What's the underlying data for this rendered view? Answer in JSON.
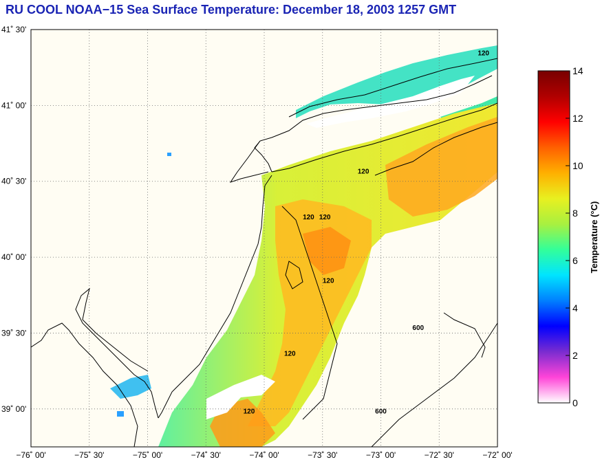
{
  "title": "RU COOL  NOAA−15  Sea Surface Temperature:  December 18, 2003 1257 GMT",
  "map": {
    "lat_labels": [
      "41˚ 30'",
      "41˚ 00'",
      "40˚ 30'",
      "40˚ 00'",
      "39˚ 30'",
      "39˚ 00'"
    ],
    "lon_labels": [
      "−76˚ 00'",
      "−75˚ 30'",
      "−75˚ 00'",
      "−74˚ 30'",
      "−74˚ 00'",
      "−73˚ 30'",
      "−73˚ 00'",
      "−72˚ 30'",
      "−72˚ 00'"
    ],
    "lat_range": [
      38.75,
      41.5
    ],
    "lon_range": [
      -76.0,
      -72.0
    ],
    "grid": true,
    "contour_labels": [
      {
        "text": "120",
        "lon": -72.12,
        "lat": 41.33
      },
      {
        "text": "120",
        "lon": -73.15,
        "lat": 40.55
      },
      {
        "text": "120",
        "lon": -73.62,
        "lat": 40.25
      },
      {
        "text": "120",
        "lon": -73.48,
        "lat": 40.25
      },
      {
        "text": "120",
        "lon": -73.45,
        "lat": 39.83
      },
      {
        "text": "120",
        "lon": -73.78,
        "lat": 39.35
      },
      {
        "text": "600",
        "lon": -72.68,
        "lat": 39.52
      },
      {
        "text": "600",
        "lon": -73.0,
        "lat": 38.97
      },
      {
        "text": "120",
        "lon": -74.13,
        "lat": 38.97
      }
    ]
  },
  "colorbar": {
    "title": "Temperature (°C)",
    "min": 0,
    "max": 14,
    "tick_labels": [
      "0",
      "2",
      "4",
      "6",
      "8",
      "10",
      "12",
      "14"
    ],
    "colors": [
      "#ffffff",
      "#ff44d8",
      "#7a2cd0",
      "#0000ff",
      "#0080ff",
      "#00e5ff",
      "#33ff99",
      "#a8f040",
      "#e8f020",
      "#ffb000",
      "#ff6000",
      "#ff0000",
      "#b00000",
      "#780000"
    ]
  },
  "style": {
    "title_color": "#1a24b4",
    "land_color": "#fffdf3"
  }
}
